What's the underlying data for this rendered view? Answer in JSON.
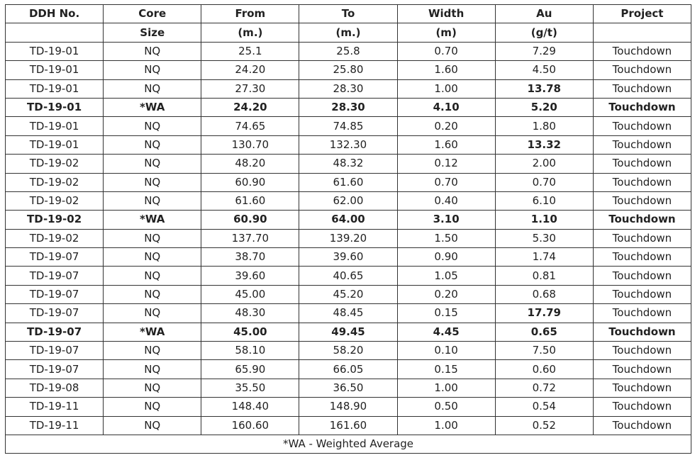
{
  "table": {
    "headers": [
      [
        "DDH No.",
        "Core",
        "From",
        "To",
        "Width",
        "Au",
        "Project"
      ],
      [
        "",
        "Size",
        "(m.)",
        "(m.)",
        "(m)",
        "(g/t)",
        ""
      ]
    ],
    "rows": [
      {
        "cells": [
          "TD-19-01",
          "NQ",
          "25.1",
          "25.8",
          "0.70",
          "7.29",
          "Touchdown"
        ],
        "bold": false,
        "au_bold": false
      },
      {
        "cells": [
          "TD-19-01",
          "NQ",
          "24.20",
          "25.80",
          "1.60",
          "4.50",
          "Touchdown"
        ],
        "bold": false,
        "au_bold": false
      },
      {
        "cells": [
          "TD-19-01",
          "NQ",
          "27.30",
          "28.30",
          "1.00",
          "13.78",
          "Touchdown"
        ],
        "bold": false,
        "au_bold": true
      },
      {
        "cells": [
          "TD-19-01",
          "*WA",
          "24.20",
          "28.30",
          "4.10",
          "5.20",
          "Touchdown"
        ],
        "bold": true,
        "au_bold": false
      },
      {
        "cells": [
          "TD-19-01",
          "NQ",
          "74.65",
          "74.85",
          "0.20",
          "1.80",
          "Touchdown"
        ],
        "bold": false,
        "au_bold": false
      },
      {
        "cells": [
          "TD-19-01",
          "NQ",
          "130.70",
          "132.30",
          "1.60",
          "13.32",
          "Touchdown"
        ],
        "bold": false,
        "au_bold": true
      },
      {
        "cells": [
          "TD-19-02",
          "NQ",
          "48.20",
          "48.32",
          "0.12",
          "2.00",
          "Touchdown"
        ],
        "bold": false,
        "au_bold": false
      },
      {
        "cells": [
          "TD-19-02",
          "NQ",
          "60.90",
          "61.60",
          "0.70",
          "0.70",
          "Touchdown"
        ],
        "bold": false,
        "au_bold": false
      },
      {
        "cells": [
          "TD-19-02",
          "NQ",
          "61.60",
          "62.00",
          "0.40",
          "6.10",
          "Touchdown"
        ],
        "bold": false,
        "au_bold": false
      },
      {
        "cells": [
          "TD-19-02",
          "*WA",
          "60.90",
          "64.00",
          "3.10",
          "1.10",
          "Touchdown"
        ],
        "bold": true,
        "au_bold": false
      },
      {
        "cells": [
          "TD-19-02",
          "NQ",
          "137.70",
          "139.20",
          "1.50",
          "5.30",
          "Touchdown"
        ],
        "bold": false,
        "au_bold": false
      },
      {
        "cells": [
          "TD-19-07",
          "NQ",
          "38.70",
          "39.60",
          "0.90",
          "1.74",
          "Touchdown"
        ],
        "bold": false,
        "au_bold": false
      },
      {
        "cells": [
          "TD-19-07",
          "NQ",
          "39.60",
          "40.65",
          "1.05",
          "0.81",
          "Touchdown"
        ],
        "bold": false,
        "au_bold": false
      },
      {
        "cells": [
          "TD-19-07",
          "NQ",
          "45.00",
          "45.20",
          "0.20",
          "0.68",
          "Touchdown"
        ],
        "bold": false,
        "au_bold": false
      },
      {
        "cells": [
          "TD-19-07",
          "NQ",
          "48.30",
          "48.45",
          "0.15",
          "17.79",
          "Touchdown"
        ],
        "bold": false,
        "au_bold": true
      },
      {
        "cells": [
          "TD-19-07",
          "*WA",
          "45.00",
          "49.45",
          "4.45",
          "0.65",
          "Touchdown"
        ],
        "bold": true,
        "au_bold": false
      },
      {
        "cells": [
          "TD-19-07",
          "NQ",
          "58.10",
          "58.20",
          "0.10",
          "7.50",
          "Touchdown"
        ],
        "bold": false,
        "au_bold": false
      },
      {
        "cells": [
          "TD-19-07",
          "NQ",
          "65.90",
          "66.05",
          "0.15",
          "0.60",
          "Touchdown"
        ],
        "bold": false,
        "au_bold": false
      },
      {
        "cells": [
          "TD-19-08",
          "NQ",
          "35.50",
          "36.50",
          "1.00",
          "0.72",
          "Touchdown"
        ],
        "bold": false,
        "au_bold": false
      },
      {
        "cells": [
          "TD-19-11",
          "NQ",
          "148.40",
          "148.90",
          "0.50",
          "0.54",
          "Touchdown"
        ],
        "bold": false,
        "au_bold": false
      },
      {
        "cells": [
          "TD-19-11",
          "NQ",
          "160.60",
          "161.60",
          "1.00",
          "0.52",
          "Touchdown"
        ],
        "bold": false,
        "au_bold": false
      }
    ],
    "footnote": "*WA - Weighted Average"
  }
}
